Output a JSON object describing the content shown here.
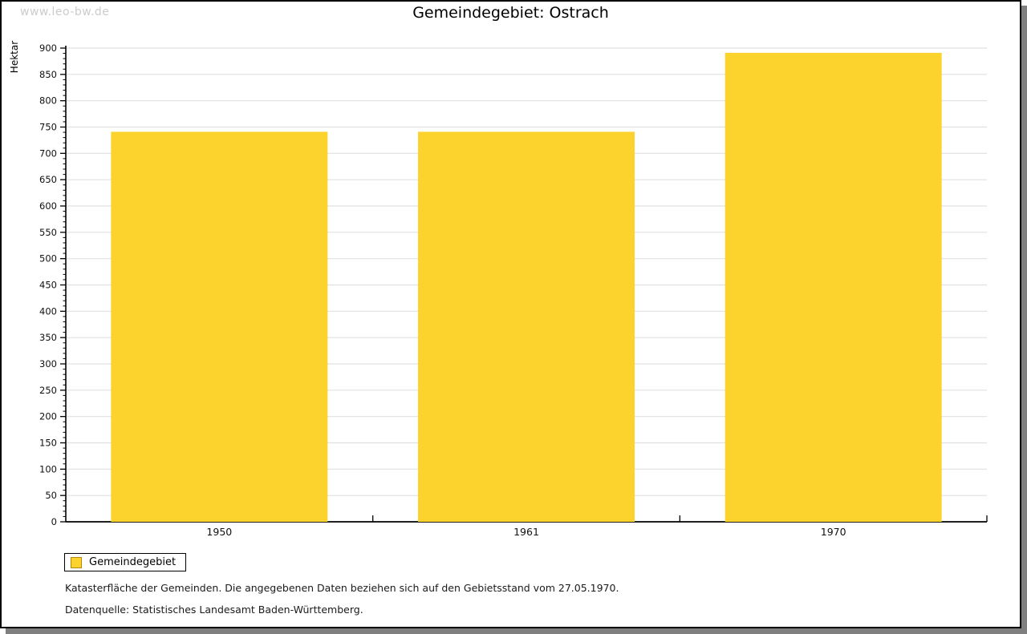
{
  "watermark": "www.leo-bw.de",
  "title": "Gemeindegebiet: Ostrach",
  "legend": {
    "label": "Gemeindegebiet"
  },
  "caption": {
    "line1": "Katasterfläche der Gemeinden. Die angegebenen Daten beziehen sich auf den Gebietsstand vom 27.05.1970.",
    "line2": "Datenquelle: Statistisches Landesamt Baden-Württemberg."
  },
  "colors": {
    "bar": "#fcd32d",
    "bar_swatch_border": "#b8860b",
    "grid": "#e0e0e0",
    "axis": "#000000",
    "text": "#1a1a1a",
    "watermark": "#cccccc",
    "shadow": "#7f7f7f"
  },
  "chart_data": {
    "type": "bar",
    "title": "Gemeindegebiet: Ostrach",
    "ylabel": "Hektar",
    "xlabel": "",
    "categories": [
      "1950",
      "1961",
      "1970"
    ],
    "series": [
      {
        "name": "Gemeindegebiet",
        "values": [
          741,
          741,
          891
        ]
      }
    ],
    "ylim": [
      0,
      900
    ],
    "ytick_step": 50,
    "yminor_step": 10,
    "grid": true,
    "legend_position": "bottom-left",
    "bar_color": "#fcd32d"
  }
}
